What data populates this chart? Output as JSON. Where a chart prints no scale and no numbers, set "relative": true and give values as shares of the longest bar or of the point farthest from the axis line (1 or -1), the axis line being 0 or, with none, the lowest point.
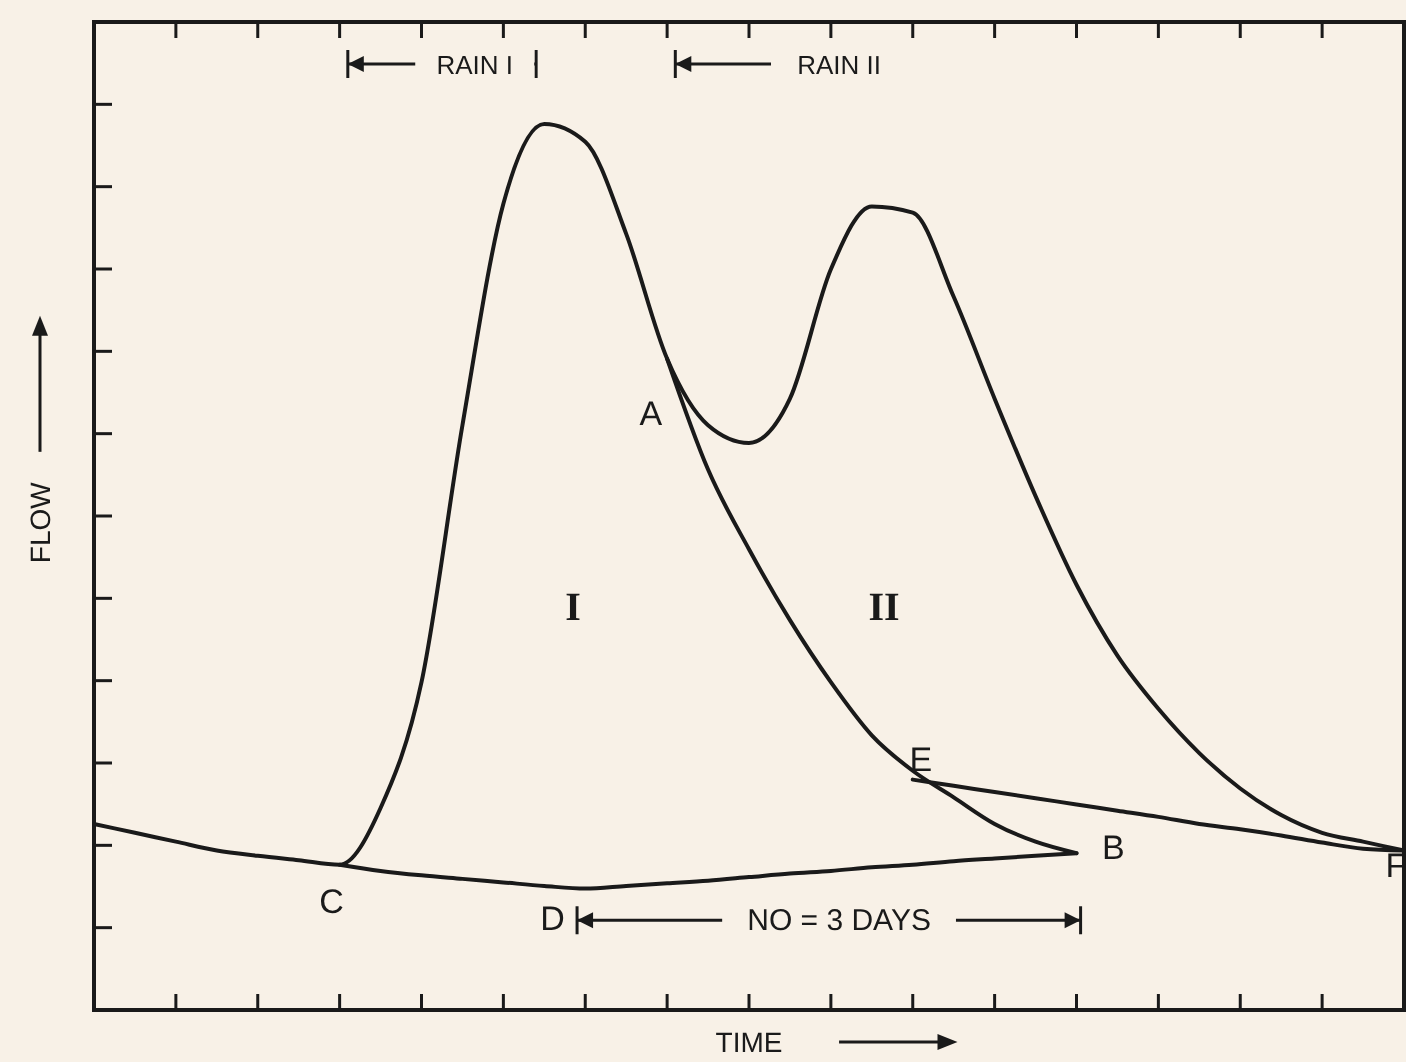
{
  "chart_data": {
    "type": "line",
    "relative": true,
    "xlabel": "TIME",
    "ylabel": "FLOW",
    "tick_labels": false,
    "marker": "none",
    "line_style": "solid",
    "categories": [
      null,
      null,
      null,
      null,
      null,
      null,
      null,
      null,
      null,
      null,
      null,
      null,
      null,
      null,
      null,
      null,
      null,
      null,
      null,
      null,
      null,
      null,
      null,
      null,
      null,
      null,
      null,
      null,
      null,
      null,
      null,
      null,
      null
    ],
    "series": [
      {
        "color": "#1a1a1a",
        "values": [
          0.21,
          0.2,
          0.19,
          0.18,
          0.174,
          0.169,
          0.164,
          0.228,
          0.37,
          0.66,
          0.91,
          1,
          0.98,
          0.876,
          0.735,
          0.66,
          0.64,
          0.69,
          0.836,
          0.907,
          0.9,
          0.805,
          0.69,
          0.58,
          0.48,
          0.4,
          0.34,
          0.29,
          0.25,
          0.22,
          0.2,
          0.19,
          0.18
        ]
      },
      {
        "color": "#1a1a1a",
        "values": [
          null,
          null,
          null,
          null,
          null,
          null,
          null,
          null,
          null,
          null,
          null,
          null,
          null,
          null,
          0.735,
          0.61,
          0.52,
          0.44,
          0.37,
          0.31,
          0.27,
          0.24,
          0.21,
          0.19,
          0.177,
          null,
          null,
          null,
          null,
          null,
          null,
          null,
          null
        ]
      },
      {
        "color": "#1a1a1a",
        "values": [
          null,
          null,
          null,
          null,
          null,
          null,
          0.164,
          0.157,
          0.152,
          0.148,
          0.144,
          0.14,
          0.137,
          0.14,
          0.143,
          0.146,
          0.15,
          0.154,
          0.157,
          0.161,
          0.164,
          0.168,
          0.171,
          0.174,
          0.177,
          null,
          null,
          null,
          null,
          null,
          null,
          null,
          null
        ]
      },
      {
        "color": "#1a1a1a",
        "values": [
          null,
          null,
          null,
          null,
          null,
          null,
          null,
          null,
          null,
          null,
          null,
          null,
          null,
          null,
          null,
          null,
          null,
          null,
          null,
          null,
          0.26,
          0.253,
          0.246,
          0.239,
          0.232,
          0.225,
          0.218,
          0.21,
          0.204,
          0.197,
          0.189,
          0.182,
          0.18
        ]
      }
    ],
    "annotations": [
      "RAIN I",
      "RAIN II",
      "I",
      "II",
      "A",
      "B",
      "C",
      "D",
      "E",
      "F",
      "NO = 3 DAYS"
    ]
  }
}
